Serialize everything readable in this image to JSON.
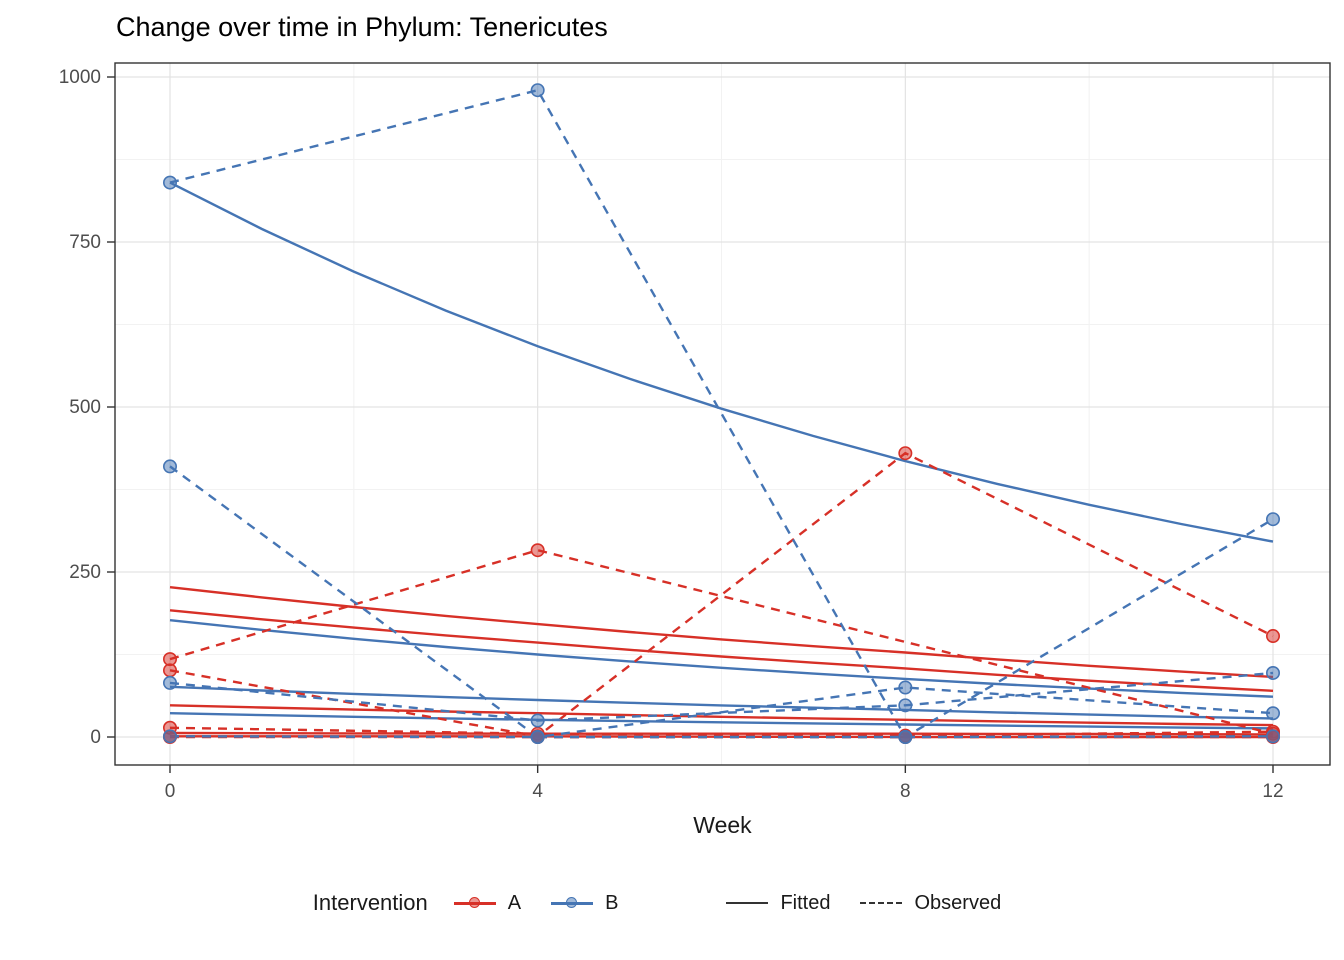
{
  "title": "Change over time in Phylum: Tenericutes",
  "x_axis": {
    "title": "Week",
    "ticks": [
      "0",
      "4",
      "8",
      "12"
    ]
  },
  "y_axis": {
    "ticks": [
      "0",
      "250",
      "500",
      "750",
      "1000"
    ]
  },
  "legend": {
    "title": "Intervention",
    "groups": [
      {
        "label": "A",
        "color": "#D73027"
      },
      {
        "label": "B",
        "color": "#4575B4"
      }
    ],
    "linetypes": [
      {
        "label": "Fitted",
        "style": "solid"
      },
      {
        "label": "Observed",
        "style": "dashed"
      }
    ]
  },
  "colors": {
    "group_a": "#D73027",
    "group_b": "#4575B4",
    "panel_border": "#333333",
    "grid_major": "#e3e3e3",
    "grid_minor": "#f2f2f2",
    "tick_text": "#4d4d4d",
    "linetype_key": "#333333"
  },
  "chart_data": {
    "type": "line",
    "title": "Change over time in Phylum: Tenericutes",
    "xlabel": "Week",
    "ylabel": "",
    "x": [
      0,
      4,
      8,
      12
    ],
    "x_ticks": [
      0,
      4,
      8,
      12
    ],
    "x_minor": [
      2,
      6,
      10
    ],
    "y_ticks": [
      0,
      250,
      500,
      750,
      1000
    ],
    "y_minor": [
      125,
      375,
      625,
      875
    ],
    "ylim": [
      0,
      1000
    ],
    "grid": true,
    "legend_position": "bottom",
    "series": [
      {
        "subject": "A1",
        "group": "A",
        "fitted": [
          227,
          171,
          128,
          91
        ],
        "observed": [
          [
            0,
            118
          ],
          [
            4,
            283
          ],
          [
            12,
            5
          ]
        ]
      },
      {
        "subject": "A2",
        "group": "A",
        "fitted": [
          192,
          143,
          104,
          70
        ],
        "observed": [
          [
            0,
            101
          ],
          [
            4,
            1
          ],
          [
            8,
            430
          ],
          [
            12,
            153
          ]
        ]
      },
      {
        "subject": "A3",
        "group": "A",
        "fitted": [
          48,
          36,
          26,
          18
        ],
        "observed": [
          [
            0,
            14
          ],
          [
            4,
            5
          ],
          [
            8,
            2
          ],
          [
            12,
            8
          ]
        ]
      },
      {
        "subject": "A4",
        "group": "A",
        "fitted": [
          6,
          5,
          5,
          4
        ],
        "observed": [
          [
            0,
            1
          ],
          [
            4,
            0
          ],
          [
            8,
            0
          ],
          [
            12,
            1
          ]
        ]
      },
      {
        "subject": "A5",
        "group": "A",
        "fitted": [
          1,
          1,
          0,
          0
        ],
        "observed": [
          [
            0,
            0
          ],
          [
            4,
            0
          ],
          [
            8,
            0
          ],
          [
            12,
            0
          ]
        ]
      },
      {
        "subject": "B1",
        "group": "B",
        "fitted": [
          840,
          592,
          418,
          296
        ],
        "observed": [
          [
            0,
            840
          ],
          [
            4,
            980
          ],
          [
            8,
            0
          ],
          [
            12,
            330
          ]
        ]
      },
      {
        "subject": "B2",
        "group": "B",
        "fitted": [
          177,
          125,
          88,
          61
        ],
        "observed": [
          [
            0,
            410
          ],
          [
            4,
            0
          ],
          [
            8,
            75
          ],
          [
            12,
            36
          ]
        ]
      },
      {
        "subject": "B3",
        "group": "B",
        "fitted": [
          76,
          56,
          41,
          28
        ],
        "observed": [
          [
            0,
            82
          ],
          [
            4,
            25
          ],
          [
            8,
            48
          ],
          [
            12,
            97
          ]
        ]
      },
      {
        "subject": "B4",
        "group": "B",
        "fitted": [
          36,
          26,
          19,
          13
        ],
        "observed": [
          [
            0,
            1
          ],
          [
            4,
            0
          ],
          [
            8,
            0
          ],
          [
            12,
            1
          ]
        ]
      }
    ]
  }
}
